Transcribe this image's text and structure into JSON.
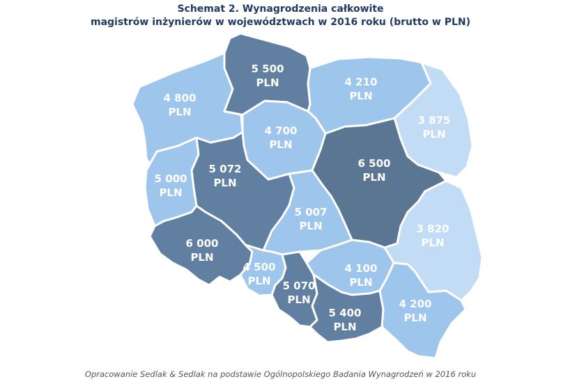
{
  "title": {
    "line1": "Schemat 2. Wynagrodzenia całkowite",
    "line2": "magistrów inżynierów w województwach w 2016 roku (brutto w PLN)"
  },
  "unit": "PLN",
  "regions": [
    {
      "id": "zachodniopomorskie",
      "value": "4 800",
      "color": "#9ec5ec"
    },
    {
      "id": "pomorskie",
      "value": "5 500",
      "color": "#617fa0"
    },
    {
      "id": "warminsko-mazurskie",
      "value": "4 210",
      "color": "#9ec5ec"
    },
    {
      "id": "podlaskie",
      "value": "3 875",
      "color": "#c2dcf5"
    },
    {
      "id": "kujawsko-pomorskie",
      "value": "4 700",
      "color": "#9ec5ec"
    },
    {
      "id": "lubuskie",
      "value": "5 000",
      "color": "#9ec5ec"
    },
    {
      "id": "wielkopolskie",
      "value": "5 072",
      "color": "#617fa0"
    },
    {
      "id": "mazowieckie",
      "value": "6 500",
      "color": "#5b7693"
    },
    {
      "id": "lodzkie",
      "value": "5 007",
      "color": "#9ec5ec"
    },
    {
      "id": "lubelskie",
      "value": "3 820",
      "color": "#c2dcf5"
    },
    {
      "id": "dolnoslaskie",
      "value": "6 000",
      "color": "#617fa0"
    },
    {
      "id": "opolskie",
      "value": "4 500",
      "color": "#9ec5ec"
    },
    {
      "id": "slaskie",
      "value": "5 070",
      "color": "#617fa0"
    },
    {
      "id": "swietokrzyskie",
      "value": "4 100",
      "color": "#9ec5ec"
    },
    {
      "id": "malopolskie",
      "value": "5 400",
      "color": "#617fa0"
    },
    {
      "id": "podkarpackie",
      "value": "4 200",
      "color": "#9ec5ec"
    }
  ],
  "source": "Opracowanie Sedlak & Sedlak na podstawie Ogólnopolskiego Badania Wynagrodzeń w 2016 roku"
}
